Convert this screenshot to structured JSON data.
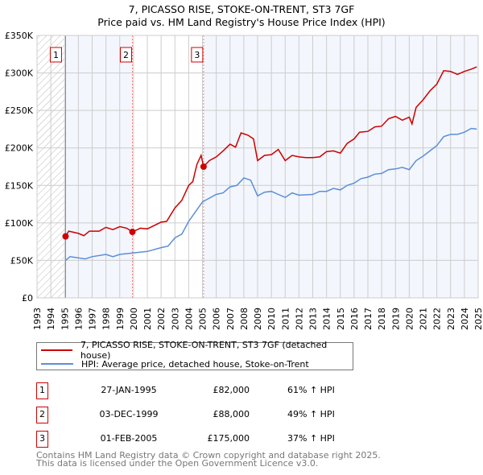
{
  "chart_data": {
    "type": "line",
    "title": "7, PICASSO RISE, STOKE-ON-TRENT, ST3 7GF",
    "subtitle": "Price paid vs. HM Land Registry's House Price Index (HPI)",
    "xlim": [
      1993,
      2025
    ],
    "ylim": [
      0,
      350000
    ],
    "y_ticks": [
      {
        "v": 0,
        "label": "£0"
      },
      {
        "v": 50000,
        "label": "£50K"
      },
      {
        "v": 100000,
        "label": "£100K"
      },
      {
        "v": 150000,
        "label": "£150K"
      },
      {
        "v": 200000,
        "label": "£200K"
      },
      {
        "v": 250000,
        "label": "£250K"
      },
      {
        "v": 300000,
        "label": "£300K"
      },
      {
        "v": 350000,
        "label": "£350K"
      }
    ],
    "x_ticks": [
      "1993",
      "1994",
      "1995",
      "1996",
      "1997",
      "1998",
      "1999",
      "2000",
      "2001",
      "2002",
      "2003",
      "2004",
      "2005",
      "2006",
      "2007",
      "2008",
      "2009",
      "2010",
      "2011",
      "2012",
      "2013",
      "2014",
      "2015",
      "2016",
      "2017",
      "2018",
      "2019",
      "2020",
      "2021",
      "2022",
      "2023",
      "2024",
      "2025"
    ],
    "grid": true,
    "legend_placement": "below",
    "series": [
      {
        "name": "7, PICASSO RISE, STOKE-ON-TRENT, ST3 7GF (detached house)",
        "color": "#cc0000",
        "x": [
          1995.07,
          1995.3,
          1996,
          1996.4,
          1996.8,
          1997.5,
          1998,
          1998.5,
          1999,
          1999.5,
          1999.92,
          2000.5,
          2001,
          2002,
          2002.4,
          2003,
          2003.5,
          2004,
          2004.3,
          2004.6,
          2004.9,
          2005.08,
          2005.5,
          2006,
          2006.5,
          2007,
          2007.4,
          2007.8,
          2008.3,
          2008.7,
          2009,
          2009.5,
          2010,
          2010.5,
          2011,
          2011.5,
          2012,
          2012.5,
          2013,
          2013.5,
          2014,
          2014.5,
          2015,
          2015.5,
          2016,
          2016.4,
          2017,
          2017.5,
          2018,
          2018.5,
          2019,
          2019.5,
          2020,
          2020.2,
          2020.5,
          2021,
          2021.5,
          2022,
          2022.5,
          2023,
          2023.5,
          2024,
          2024.5,
          2024.9
        ],
        "y": [
          82000,
          89000,
          86000,
          83000,
          89000,
          89000,
          94000,
          91000,
          95000,
          93000,
          88000,
          93000,
          92000,
          101000,
          102000,
          120000,
          130000,
          150000,
          155000,
          178000,
          190000,
          175000,
          183000,
          188000,
          196000,
          205000,
          201000,
          220000,
          217000,
          212000,
          183000,
          190000,
          191000,
          198000,
          183000,
          190000,
          188000,
          187000,
          187000,
          188000,
          195000,
          196000,
          193000,
          206000,
          212000,
          221000,
          222000,
          228000,
          229000,
          239000,
          242000,
          237000,
          241000,
          232000,
          254000,
          264000,
          276000,
          285000,
          303000,
          302000,
          298000,
          302000,
          305000,
          308000
        ]
      },
      {
        "name": "HPI: Average price, detached house, Stoke-on-Trent",
        "color": "#5b8fd6",
        "x": [
          1995.07,
          1995.4,
          1996.5,
          1997,
          1998,
          1998.5,
          1999,
          2000,
          2001,
          2002,
          2002.5,
          2003,
          2003.5,
          2004,
          2004.5,
          2005,
          2006,
          2006.5,
          2007,
          2007.5,
          2008,
          2008.5,
          2009,
          2009.5,
          2010,
          2010.5,
          2011,
          2011.5,
          2012,
          2013,
          2013.5,
          2014,
          2014.5,
          2015,
          2015.5,
          2016,
          2016.5,
          2017,
          2017.5,
          2018,
          2018.5,
          2019,
          2019.5,
          2020,
          2020.5,
          2021,
          2021.5,
          2022,
          2022.5,
          2023,
          2023.5,
          2024,
          2024.5,
          2024.9
        ],
        "y": [
          50000,
          55000,
          52000,
          55000,
          58000,
          55000,
          58000,
          60000,
          62000,
          67000,
          69000,
          80000,
          85000,
          102000,
          115000,
          128000,
          138000,
          140000,
          148000,
          150000,
          160000,
          157000,
          136000,
          141000,
          142000,
          138000,
          134000,
          140000,
          137000,
          138000,
          142000,
          142000,
          146000,
          144000,
          150000,
          153000,
          159000,
          161000,
          165000,
          166000,
          171000,
          172000,
          174000,
          171000,
          183000,
          189000,
          196000,
          203000,
          215000,
          218000,
          218000,
          221000,
          226000,
          225000
        ]
      }
    ],
    "sales": [
      {
        "label": "1",
        "x": 1995.07,
        "y": 82000
      },
      {
        "label": "2",
        "x": 1999.92,
        "y": 88000
      },
      {
        "label": "3",
        "x": 2005.08,
        "y": 175000
      }
    ]
  },
  "table": [
    {
      "num": "1",
      "date": "27-JAN-1995",
      "price": "£82,000",
      "hpi": "61% ↑ HPI"
    },
    {
      "num": "2",
      "date": "03-DEC-1999",
      "price": "£88,000",
      "hpi": "49% ↑ HPI"
    },
    {
      "num": "3",
      "date": "01-FEB-2005",
      "price": "£175,000",
      "hpi": "37% ↑ HPI"
    }
  ],
  "footer": {
    "line1": "Contains HM Land Registry data © Crown copyright and database right 2025.",
    "line2": "This data is licensed under the Open Government Licence v3.0."
  }
}
